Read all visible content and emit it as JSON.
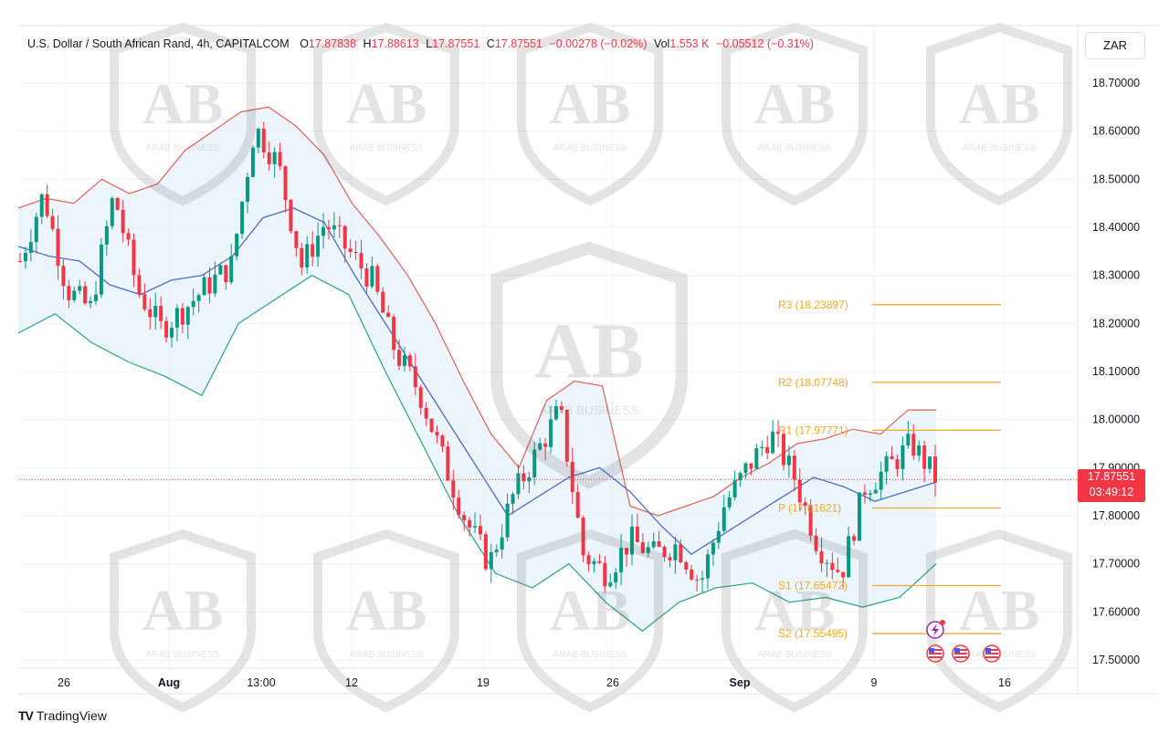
{
  "header": {
    "symbol": "U.S. Dollar / South African Rand, 4h, CAPITALCOM",
    "o_label": "O",
    "o_value": "17.87838",
    "h_label": "H",
    "h_value": "17.88613",
    "l_label": "L",
    "l_value": "17.87551",
    "c_label": "C",
    "c_value": "17.87551",
    "change": "−0.00278 (−0.02%)",
    "vol_label": "Vol",
    "vol_value": "1.553 K",
    "vol_change": "−0.05512 (−0.31%)"
  },
  "currency_button": "ZAR",
  "last_price": "17.87551",
  "countdown": "03:49:12",
  "watermark_text": "ARAB BUSINESS",
  "footer_brand": "TradingView",
  "colors": {
    "up": "#089981",
    "down": "#f23645",
    "upper_band": "#e0605a",
    "middle_band": "#3d63c4",
    "lower_band": "#2aa382",
    "band_fill": "#e7f1fb",
    "pivot": "#f0a92b",
    "grid": "#f0f3fa"
  },
  "chart_data": {
    "type": "candlestick",
    "title": "U.S. Dollar / South African Rand, 4h, CAPITALCOM",
    "ylim": [
      17.47,
      18.76
    ],
    "y_ticks": [
      "18.70000",
      "18.60000",
      "18.50000",
      "18.40000",
      "18.30000",
      "18.20000",
      "18.10000",
      "18.00000",
      "17.90000",
      "17.80000",
      "17.70000",
      "17.60000",
      "17.50000"
    ],
    "x_ticks": [
      "26",
      "Aug",
      "13:00",
      "12",
      "19",
      "26",
      "Sep",
      "9",
      "16"
    ],
    "grid": true,
    "close_path": [
      18.33,
      18.47,
      18.27,
      18.23,
      18.47,
      18.27,
      18.19,
      18.23,
      18.28,
      18.32,
      18.61,
      18.53,
      18.32,
      18.41,
      18.35,
      18.29,
      18.14,
      18.06,
      17.92,
      17.79,
      17.7,
      17.84,
      17.93,
      18.02,
      17.72,
      17.68,
      17.75,
      17.72,
      17.74,
      17.66,
      17.82,
      17.9,
      17.97,
      17.88,
      17.74,
      17.68,
      17.86,
      17.9,
      17.95,
      17.88
    ],
    "bollinger_upper": [
      18.44,
      18.46,
      18.45,
      18.5,
      18.47,
      18.49,
      18.56,
      18.6,
      18.64,
      18.65,
      18.61,
      18.55,
      18.45,
      18.38,
      18.3,
      18.2,
      18.08,
      17.97,
      17.9,
      18.04,
      18.08,
      18.07,
      17.82,
      17.8,
      17.82,
      17.84,
      17.88,
      17.91,
      17.95,
      17.96,
      17.98,
      17.97,
      18.02,
      18.02
    ],
    "bollinger_middle": [
      18.36,
      18.34,
      18.33,
      18.28,
      18.26,
      18.29,
      18.3,
      18.34,
      18.42,
      18.44,
      18.41,
      18.3,
      18.2,
      18.1,
      18.0,
      17.9,
      17.8,
      17.84,
      17.88,
      17.9,
      17.85,
      17.78,
      17.72,
      17.76,
      17.8,
      17.84,
      17.88,
      17.86,
      17.83,
      17.85,
      17.87
    ],
    "bollinger_lower": [
      18.18,
      18.22,
      18.16,
      18.12,
      18.09,
      18.05,
      18.2,
      18.25,
      18.3,
      18.26,
      18.1,
      17.95,
      17.8,
      17.68,
      17.65,
      17.7,
      17.62,
      17.56,
      17.62,
      17.65,
      17.66,
      17.62,
      17.63,
      17.61,
      17.63,
      17.7
    ],
    "pivot_levels": [
      {
        "name": "R3",
        "value": 18.23897,
        "label": "R3 (18.23897)"
      },
      {
        "name": "R2",
        "value": 18.07748,
        "label": "R2 (18.07748)"
      },
      {
        "name": "R1",
        "value": 17.97771,
        "label": "R1 (17.97771)"
      },
      {
        "name": "P",
        "value": 17.81621,
        "label": "P (17.81621)"
      },
      {
        "name": "S1",
        "value": 17.65472,
        "label": "S1 (17.65472)"
      },
      {
        "name": "S2",
        "value": 17.55495,
        "label": "S2 (17.55495)"
      }
    ],
    "last_price": 17.87551
  }
}
